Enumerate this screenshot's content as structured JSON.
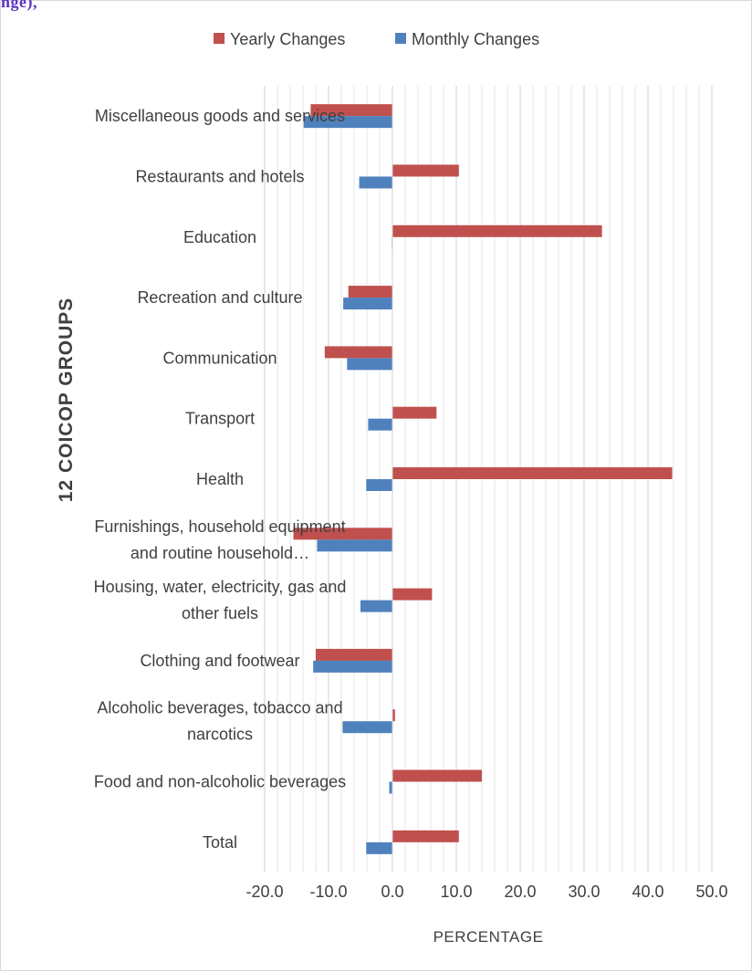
{
  "page": {
    "top_fragment": "nge), "
  },
  "chart_data": {
    "type": "bar",
    "orientation": "horizontal",
    "categories": [
      "Miscellaneous goods and services",
      "Restaurants and hotels",
      "Education",
      "Recreation and culture",
      "Communication",
      "Transport",
      "Health",
      [
        "Furnishings, household equipment",
        "and routine household…"
      ],
      [
        "Housing, water, electricity, gas and",
        "other fuels"
      ],
      "Clothing and footwear",
      [
        "Alcoholic beverages, tobacco and",
        "narcotics"
      ],
      "Food and non-alcoholic beverages",
      "Total"
    ],
    "series": [
      {
        "name": "Yearly Changes",
        "color": "#c0504d",
        "values": [
          -12.8,
          10.4,
          32.8,
          -6.9,
          -10.6,
          6.9,
          43.8,
          -15.5,
          6.2,
          -12.0,
          0.4,
          14.0,
          10.4
        ]
      },
      {
        "name": "Monthly Changes",
        "color": "#4f81bd",
        "values": [
          -13.9,
          -5.2,
          -0.1,
          -7.7,
          -7.1,
          -3.8,
          -4.1,
          -11.8,
          -5.0,
          -12.4,
          -7.8,
          -0.5,
          -4.1
        ]
      }
    ],
    "xlabel": "PERCENTAGE",
    "ylabel": "12 COICOP GROUPS",
    "xlim": [
      -20,
      50
    ],
    "xticks": [
      "-20.0",
      "-10.0",
      "0.0",
      "10.0",
      "20.0",
      "30.0",
      "40.0",
      "50.0"
    ],
    "minor_gridlines_step": 2,
    "grid": true,
    "legend_position": "top"
  }
}
